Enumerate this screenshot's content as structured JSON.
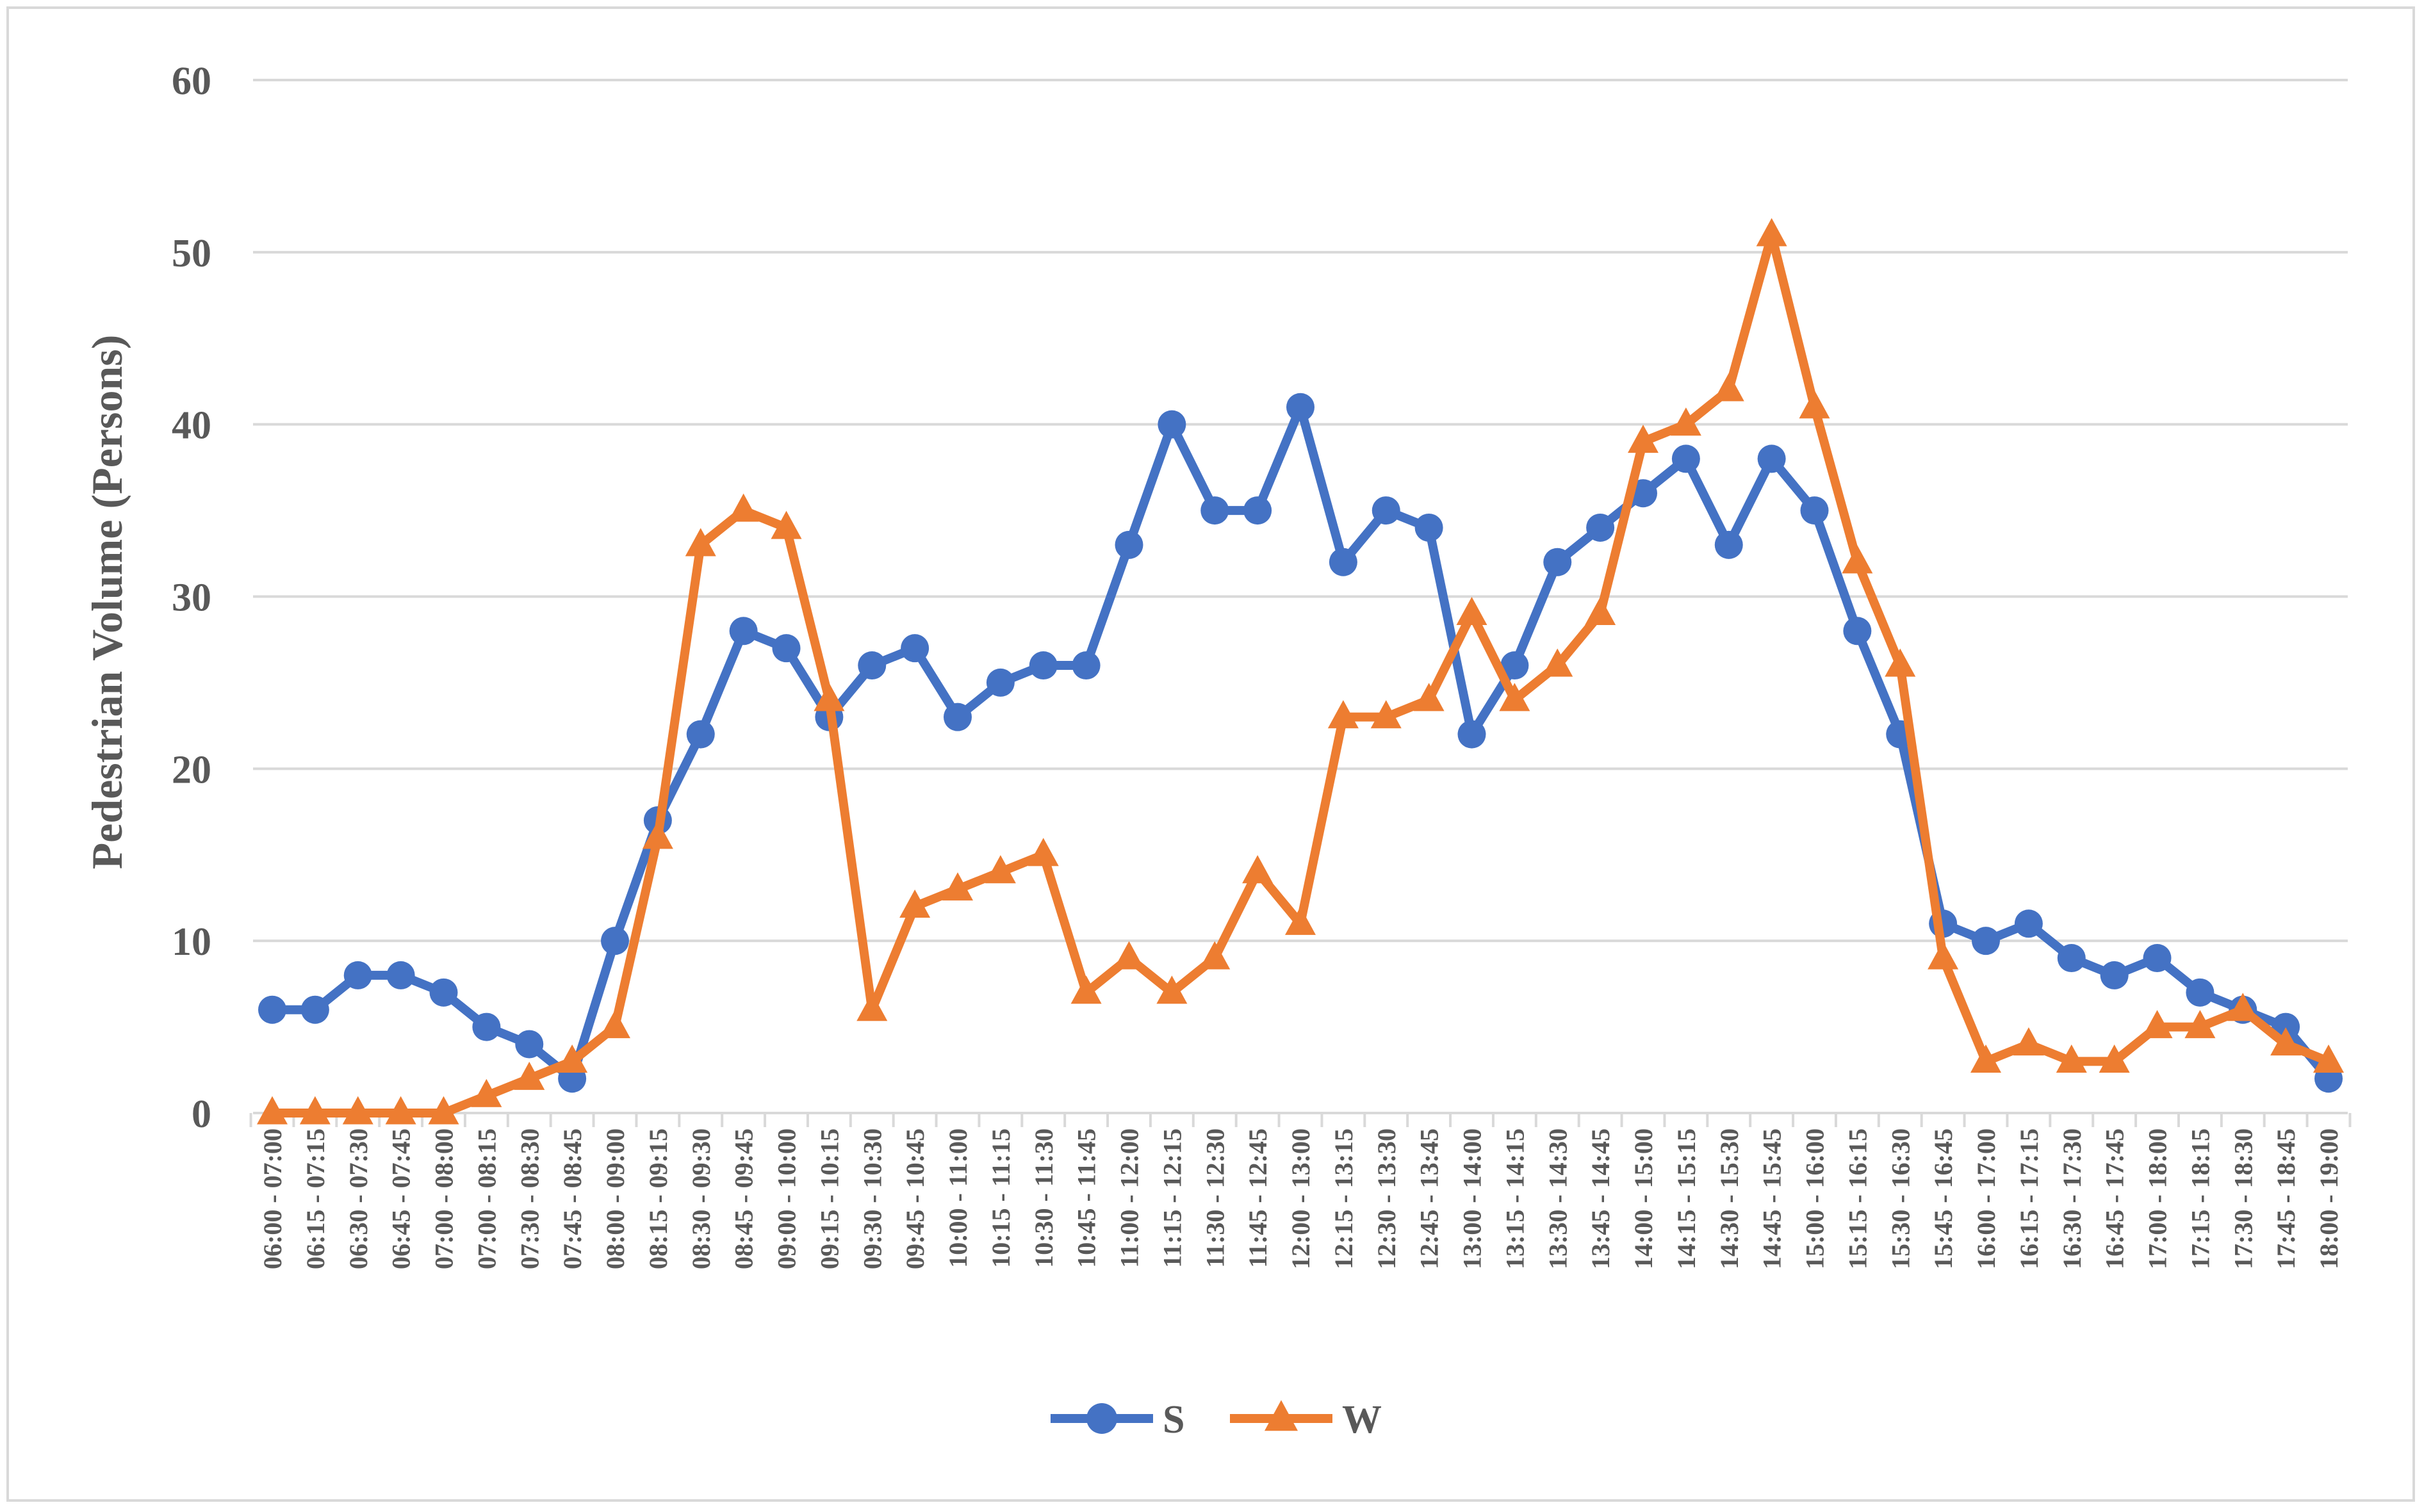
{
  "chart_data": {
    "type": "line",
    "title": "",
    "xlabel": "",
    "ylabel": "Pedestrian Volume (Persons)",
    "ylim": [
      0,
      60
    ],
    "yticks": [
      0,
      10,
      20,
      30,
      40,
      50,
      60
    ],
    "grid": "horizontal",
    "legend_position": "bottom",
    "categories": [
      "06:00 - 07:00",
      "06:15 - 07:15",
      "06:30 - 07:30",
      "06:45 - 07:45",
      "07:00 - 08:00",
      "07:00 - 08:15",
      "07:30 - 08:30",
      "07:45 - 08:45",
      "08:00 - 09:00",
      "08:15 - 09:15",
      "08:30 - 09:30",
      "08:45 - 09:45",
      "09:00 - 10:00",
      "09:15 - 10:15",
      "09:30 - 10:30",
      "09:45 - 10:45",
      "10:00 - 11:00",
      "10:15 - 11:15",
      "10:30 - 11:30",
      "10:45 - 11:45",
      "11:00 - 12:00",
      "11:15 - 12:15",
      "11:30 - 12:30",
      "11:45 - 12:45",
      "12:00 - 13:00",
      "12:15 - 13:15",
      "12:30 - 13:30",
      "12:45 - 13:45",
      "13:00 - 14:00",
      "13:15 - 14:15",
      "13:30 - 14:30",
      "13:45 - 14:45",
      "14:00 - 15:00",
      "14:15 - 15:15",
      "14:30 - 15:30",
      "14:45 - 15:45",
      "15:00 - 16:00",
      "15:15 - 16:15",
      "15:30 - 16:30",
      "15:45 - 16:45",
      "16:00 - 17:00",
      "16:15 - 17:15",
      "16:30 - 17:30",
      "16:45 - 17:45",
      "17:00 - 18:00",
      "17:15 - 18:15",
      "17:30 - 18:30",
      "17:45 - 18:45",
      "18:00 - 19:00"
    ],
    "series": [
      {
        "name": "S",
        "color": "#4472c4",
        "marker": "circle",
        "values": [
          6,
          6,
          8,
          8,
          7,
          5,
          4,
          2,
          10,
          17,
          22,
          28,
          27,
          23,
          26,
          27,
          23,
          25,
          26,
          26,
          33,
          40,
          35,
          35,
          41,
          32,
          35,
          34,
          22,
          26,
          32,
          34,
          36,
          38,
          33,
          38,
          35,
          28,
          22,
          11,
          10,
          11,
          9,
          8,
          9,
          7,
          6,
          5,
          2
        ]
      },
      {
        "name": "W",
        "color": "#ed7d31",
        "marker": "triangle",
        "values": [
          0,
          0,
          0,
          0,
          0,
          1,
          2,
          3,
          5,
          16,
          33,
          35,
          34,
          24,
          6,
          12,
          13,
          14,
          15,
          7,
          9,
          7,
          9,
          14,
          11,
          23,
          23,
          24,
          29,
          24,
          26,
          29,
          39,
          40,
          42,
          51,
          41,
          32,
          26,
          9,
          3,
          4,
          3,
          3,
          5,
          5,
          6,
          4,
          3
        ]
      }
    ]
  }
}
